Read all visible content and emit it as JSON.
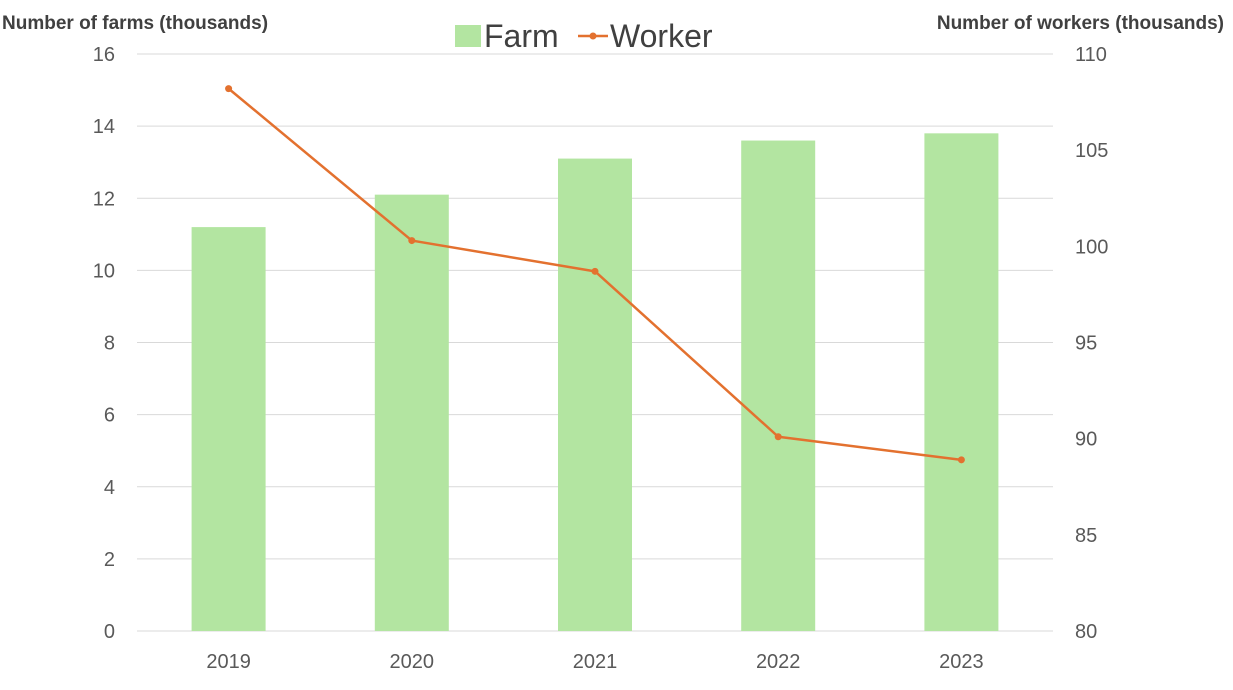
{
  "chart_data": {
    "type": "bar",
    "categories": [
      "2019",
      "2020",
      "2021",
      "2022",
      "2023"
    ],
    "series": [
      {
        "name": "Farm",
        "type": "bar",
        "axis": "left",
        "color": "#b3e5a1",
        "values": [
          11.2,
          12.1,
          13.1,
          13.6,
          13.8
        ]
      },
      {
        "name": "Worker",
        "type": "line",
        "axis": "right",
        "color": "#e3712f",
        "values": [
          108.2,
          100.3,
          98.7,
          90.1,
          88.9
        ]
      }
    ],
    "ylabel_left": "Number of farms (thousands)",
    "ylabel_right": "Number of workers (thousands)",
    "ylim_left": [
      0,
      16
    ],
    "ylim_right": [
      80,
      110
    ],
    "yticks_left": [
      "0",
      "2",
      "4",
      "6",
      "8",
      "10",
      "12",
      "14",
      "16"
    ],
    "yticks_right": [
      "80",
      "85",
      "90",
      "95",
      "100",
      "105",
      "110"
    ],
    "grid": true,
    "legend": "top-center"
  }
}
